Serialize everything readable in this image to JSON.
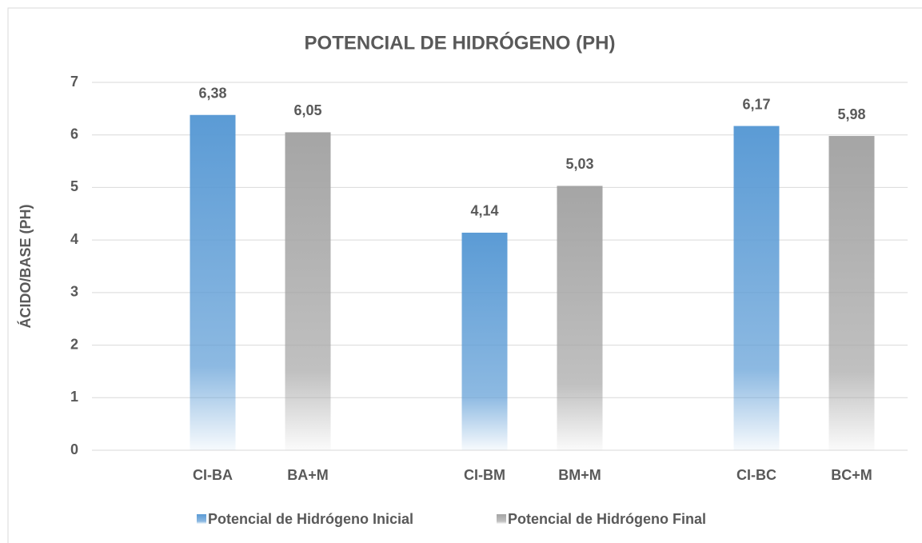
{
  "chart_data": {
    "type": "bar",
    "title": "POTENCIAL DE HIDRÓGENO (PH)",
    "y_label": "ÁCIDO/BASE (PH)",
    "ylim": [
      0,
      7
    ],
    "yticks": [
      0,
      1,
      2,
      3,
      4,
      5,
      6,
      7
    ],
    "grid": true,
    "legend": "bottom",
    "series": [
      {
        "name": "Potencial de Hidrógeno Inicial",
        "color": "#5b9bd5",
        "categories": [
          "CI-BA",
          "CI-BM",
          "CI-BC"
        ],
        "values": [
          6.38,
          4.14,
          6.17
        ],
        "value_labels": [
          "6,38",
          "4,14",
          "6,17"
        ]
      },
      {
        "name": "Potencial de Hidrógeno Final",
        "color": "#a5a5a5",
        "categories": [
          "BA+M",
          "BM+M",
          "BC+M"
        ],
        "values": [
          6.05,
          5.03,
          5.98
        ],
        "value_labels": [
          "6,05",
          "5,03",
          "5,98"
        ]
      }
    ]
  }
}
